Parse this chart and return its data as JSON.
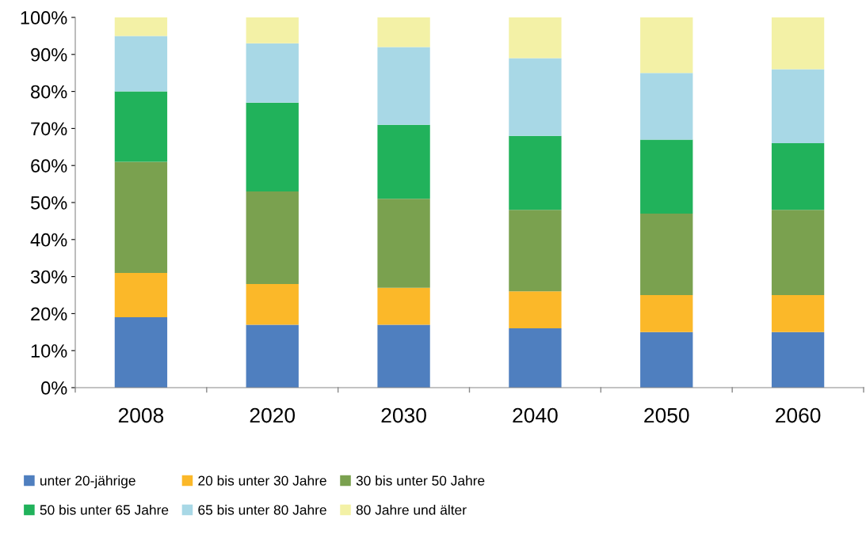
{
  "chart_data": {
    "type": "bar",
    "stacked": true,
    "categories": [
      "2008",
      "2020",
      "2030",
      "2040",
      "2050",
      "2060"
    ],
    "ylim": [
      0,
      100
    ],
    "yticks": [
      {
        "value": 0,
        "label": "0%"
      },
      {
        "value": 10,
        "label": "10%"
      },
      {
        "value": 20,
        "label": "20%"
      },
      {
        "value": 30,
        "label": "30%"
      },
      {
        "value": 40,
        "label": "40%"
      },
      {
        "value": 50,
        "label": "50%"
      },
      {
        "value": 60,
        "label": "60%"
      },
      {
        "value": 70,
        "label": "70%"
      },
      {
        "value": 80,
        "label": "80%"
      },
      {
        "value": 90,
        "label": "90%"
      },
      {
        "value": 100,
        "label": "100%"
      }
    ],
    "grid": false,
    "legend": "bottom",
    "series": [
      {
        "name": "unter 20-jährige",
        "color": "#4f7fbf",
        "values": [
          19,
          17,
          17,
          16,
          15,
          15
        ]
      },
      {
        "name": "20 bis unter 30 Jahre",
        "color": "#fbb829",
        "values": [
          12,
          11,
          10,
          10,
          10,
          10
        ]
      },
      {
        "name": "30 bis unter 50 Jahre",
        "color": "#7aa14f",
        "values": [
          30,
          25,
          24,
          22,
          22,
          23
        ]
      },
      {
        "name": "50 bis unter 65 Jahre",
        "color": "#21b25b",
        "values": [
          19,
          24,
          20,
          20,
          20,
          18
        ]
      },
      {
        "name": "65 bis unter 80 Jahre",
        "color": "#a8d8e6",
        "values": [
          15,
          16,
          21,
          21,
          18,
          20
        ]
      },
      {
        "name": "80 Jahre und älter",
        "color": "#f3f1a6",
        "values": [
          5,
          7,
          8,
          11,
          15,
          14
        ]
      }
    ]
  }
}
